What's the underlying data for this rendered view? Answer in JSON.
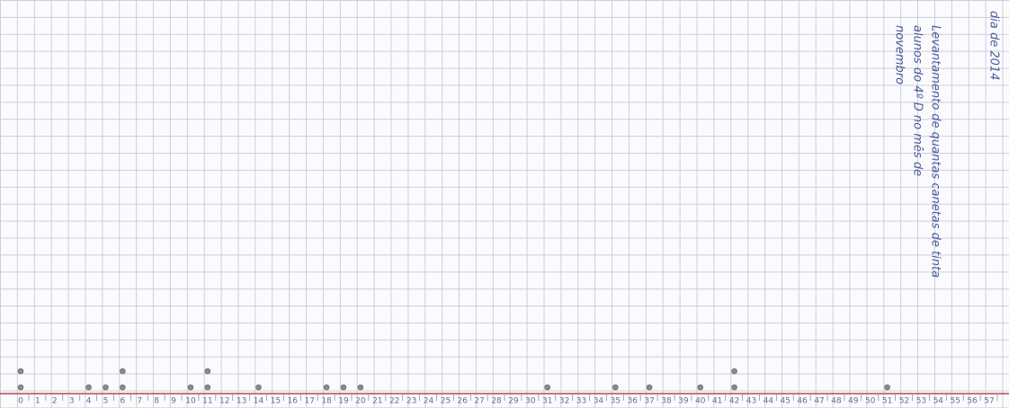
{
  "date": "dia de 2014",
  "chart_data": {
    "type": "dot",
    "title_lines": [
      "Levantamento de quantas canetas de tinta",
      "alunos do 4º D no mês de",
      "novembro"
    ],
    "x": [
      0,
      4,
      5,
      6,
      10,
      11,
      14,
      18,
      19,
      20,
      31,
      35,
      37,
      40,
      42,
      51
    ],
    "values": [
      2,
      1,
      1,
      2,
      1,
      2,
      1,
      1,
      1,
      1,
      1,
      1,
      1,
      1,
      2,
      1
    ],
    "xlim": [
      0,
      57
    ],
    "xticks": [
      0,
      1,
      2,
      3,
      4,
      5,
      6,
      7,
      8,
      9,
      10,
      11,
      12,
      13,
      14,
      15,
      16,
      17,
      18,
      19,
      20,
      21,
      22,
      23,
      24,
      25,
      26,
      27,
      28,
      29,
      30,
      31,
      32,
      33,
      34,
      35,
      36,
      37,
      38,
      39,
      40,
      41,
      42,
      43,
      44,
      45,
      46,
      47,
      48,
      49,
      50,
      51,
      52,
      53,
      54,
      55,
      56,
      57
    ],
    "color": "#8a8a8a"
  }
}
